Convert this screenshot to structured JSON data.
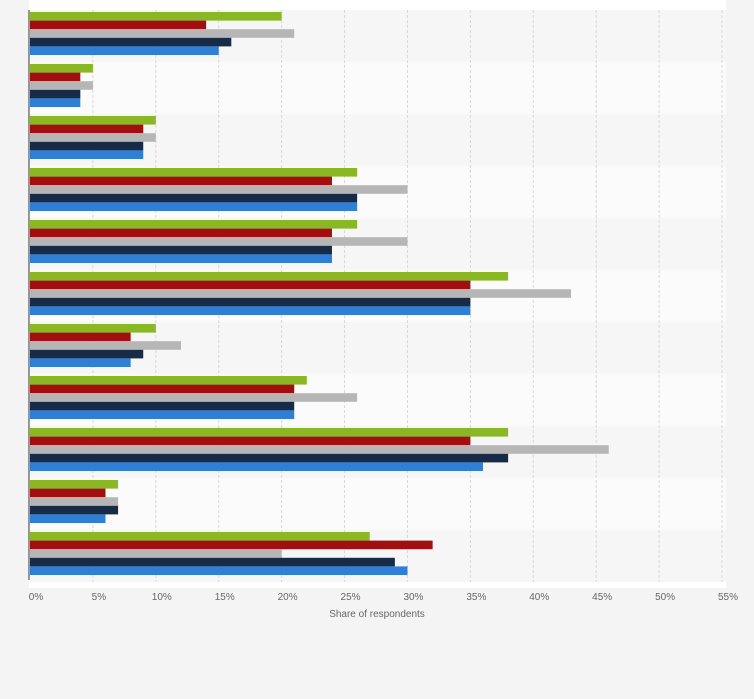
{
  "chart_data": {
    "type": "bar",
    "orientation": "horizontal",
    "xlabel": "Share of respondents",
    "xlim": [
      0,
      55
    ],
    "x_ticks": [
      "0%",
      "5%",
      "10%",
      "15%",
      "20%",
      "25%",
      "30%",
      "35%",
      "40%",
      "45%",
      "50%",
      "55%"
    ],
    "grid": true,
    "series_colors": [
      "#8ab825",
      "#a10f10",
      "#b6b6b6",
      "#172b47",
      "#2f7ed8"
    ],
    "groups": [
      [
        20,
        14,
        21,
        16,
        15
      ],
      [
        5,
        4,
        5,
        4,
        4
      ],
      [
        10,
        9,
        10,
        9,
        9
      ],
      [
        26,
        24,
        30,
        26,
        26
      ],
      [
        26,
        24,
        30,
        24,
        24
      ],
      [
        38,
        35,
        43,
        35,
        35
      ],
      [
        10,
        8,
        12,
        9,
        8
      ],
      [
        22,
        21,
        26,
        21,
        21
      ],
      [
        38,
        35,
        46,
        38,
        36
      ],
      [
        7,
        6,
        7,
        7,
        6
      ],
      [
        27,
        32,
        20,
        29,
        30
      ]
    ]
  }
}
